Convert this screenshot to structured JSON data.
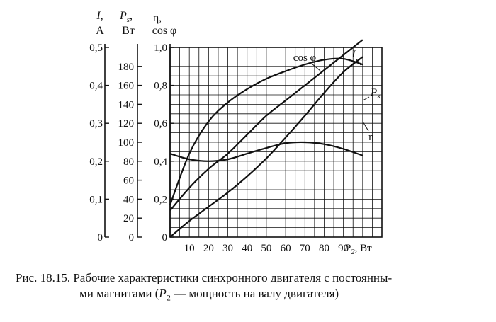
{
  "chart_data": {
    "type": "line",
    "x": [
      0,
      10,
      20,
      30,
      40,
      50,
      60,
      70,
      80,
      90,
      100
    ],
    "xlabel_var": "P",
    "xlabel_sub": "2",
    "xlabel_unit": ", Вт",
    "xlim": [
      0,
      110
    ],
    "xticks": [
      "10",
      "20",
      "30",
      "40",
      "50",
      "60",
      "70",
      "80",
      "90"
    ],
    "axes": {
      "I": {
        "var": "I,",
        "unit": "A",
        "ticks": [
          "0",
          "0,1",
          "0,2",
          "0,3",
          "0,4",
          "0,5"
        ],
        "lim": [
          0,
          0.5
        ]
      },
      "Ps": {
        "var": "P",
        "sub": "s",
        "comma": ",",
        "unit": "Вт",
        "ticks": [
          "0",
          "20",
          "40",
          "60",
          "80",
          "100",
          "120",
          "140",
          "160",
          "180"
        ],
        "lim": [
          0,
          200
        ]
      },
      "eta": {
        "var": "η,",
        "unit": "cos φ",
        "ticks": [
          "0",
          "0,2",
          "0,4",
          "0,6",
          "0,8",
          "1,0"
        ],
        "lim": [
          0,
          1.0
        ]
      }
    },
    "series": [
      {
        "name": "I",
        "name_label": "I",
        "axis": "I",
        "values": [
          0.07,
          0.13,
          0.18,
          0.22,
          0.27,
          0.32,
          0.36,
          0.4,
          0.44,
          0.48,
          0.52
        ]
      },
      {
        "name": "Ps",
        "name_label": "P",
        "name_sub": "s",
        "axis": "Ps",
        "values": [
          0,
          17,
          32,
          47,
          64,
          83,
          105,
          128,
          152,
          174,
          190
        ]
      },
      {
        "name": "cos φ",
        "name_label": "cos φ",
        "axis": "eta",
        "values": [
          0.17,
          0.44,
          0.61,
          0.71,
          0.78,
          0.835,
          0.875,
          0.91,
          0.935,
          0.94,
          0.91
        ]
      },
      {
        "name": "η",
        "name_label": "η",
        "axis": "eta",
        "values": [
          0.44,
          0.41,
          0.4,
          0.41,
          0.44,
          0.47,
          0.495,
          0.5,
          0.49,
          0.465,
          0.43
        ]
      }
    ],
    "grid": true
  },
  "caption": {
    "line1_pre": "Рис. 18.15. Рабочие характеристики синхронного двигателя с постоянны-",
    "line2_pre": "ми магнитами (",
    "line2_var": "P",
    "line2_sub": "2",
    "line2_post": " — мощность на валу двигателя)"
  }
}
